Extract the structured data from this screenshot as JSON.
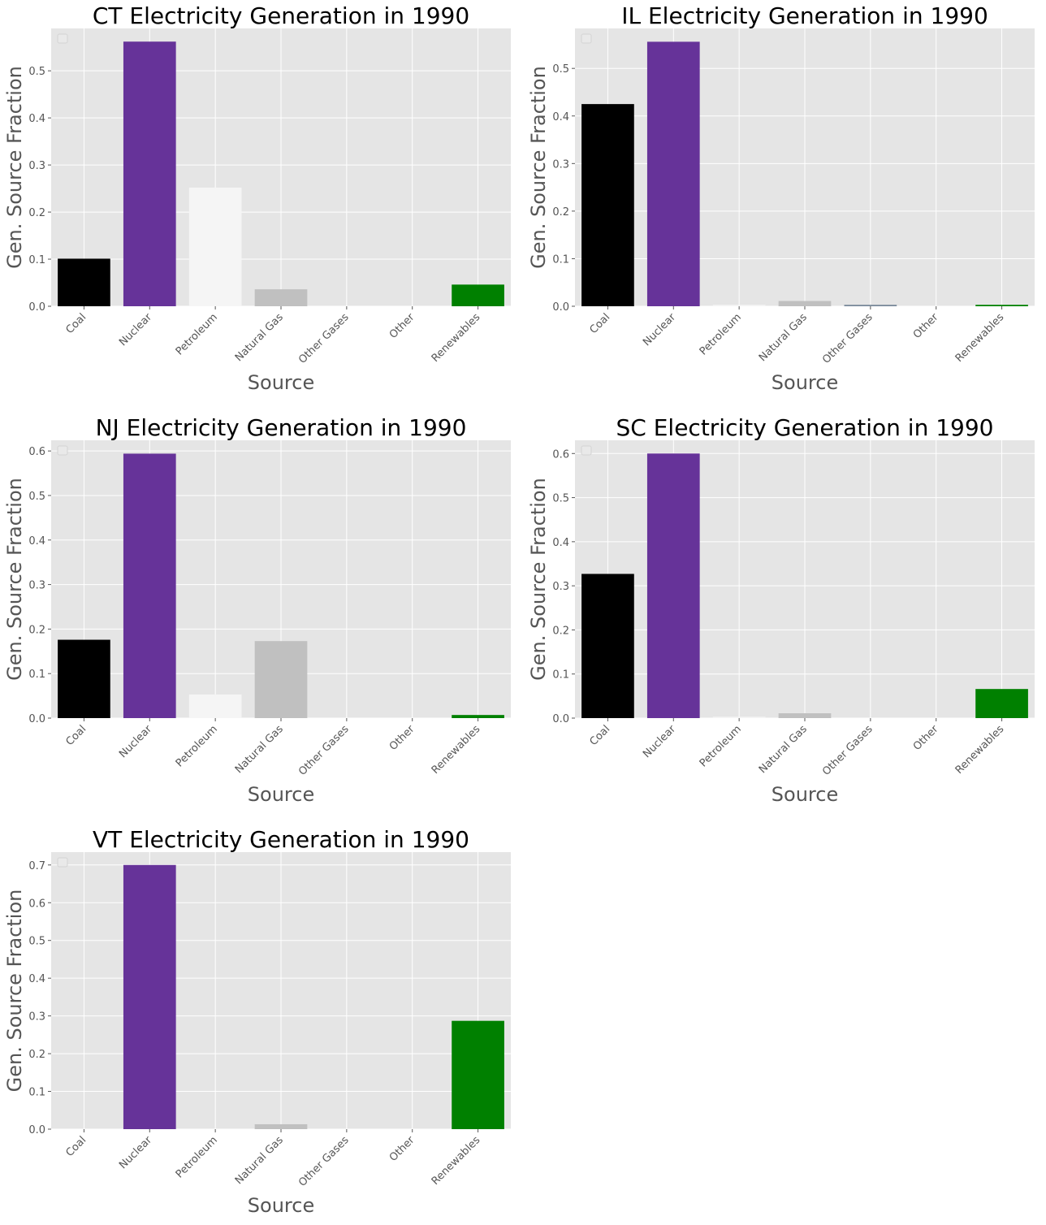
{
  "colors": {
    "plot_background": "#e5e5e5",
    "grid": "#ffffff",
    "tick_text": "#555555",
    "axis_label": "#555555",
    "title": "#000000",
    "Coal": "#000000",
    "Nuclear": "#663399",
    "Petroleum": "#f5f5f5",
    "Natural Gas": "#c0c0c0",
    "Other Gases": "#778899",
    "Other": "#e5e5e5",
    "Renewables": "#008000"
  },
  "chart_data": [
    {
      "type": "bar",
      "title": "CT Electricity Generation in 1990",
      "xlabel": "Source",
      "ylabel": "Gen. Source Fraction",
      "categories": [
        "Coal",
        "Nuclear",
        "Petroleum",
        "Natural Gas",
        "Other Gases",
        "Other",
        "Renewables"
      ],
      "values": [
        0.101,
        0.562,
        0.252,
        0.036,
        0.0,
        0.0,
        0.046
      ],
      "ylim": [
        0,
        0.59
      ],
      "yticks": [
        0.0,
        0.1,
        0.2,
        0.3,
        0.4,
        0.5
      ],
      "ytick_labels": [
        "0.0",
        "0.1",
        "0.2",
        "0.3",
        "0.4",
        "0.5"
      ],
      "grid": true,
      "legend": "top-left"
    },
    {
      "type": "bar",
      "title": "IL Electricity Generation in 1990",
      "xlabel": "Source",
      "ylabel": "Gen. Source Fraction",
      "categories": [
        "Coal",
        "Nuclear",
        "Petroleum",
        "Natural Gas",
        "Other Gases",
        "Other",
        "Renewables"
      ],
      "values": [
        0.425,
        0.556,
        0.003,
        0.011,
        0.003,
        0.0,
        0.003
      ],
      "ylim": [
        0,
        0.584
      ],
      "yticks": [
        0.0,
        0.1,
        0.2,
        0.3,
        0.4,
        0.5
      ],
      "ytick_labels": [
        "0.0",
        "0.1",
        "0.2",
        "0.3",
        "0.4",
        "0.5"
      ],
      "grid": true,
      "legend": "top-left"
    },
    {
      "type": "bar",
      "title": "NJ Electricity Generation in 1990",
      "xlabel": "Source",
      "ylabel": "Gen. Source Fraction",
      "categories": [
        "Coal",
        "Nuclear",
        "Petroleum",
        "Natural Gas",
        "Other Gases",
        "Other",
        "Renewables"
      ],
      "values": [
        0.176,
        0.594,
        0.053,
        0.173,
        0.0,
        0.0,
        0.007
      ],
      "ylim": [
        0,
        0.624
      ],
      "yticks": [
        0.0,
        0.1,
        0.2,
        0.3,
        0.4,
        0.5,
        0.6
      ],
      "ytick_labels": [
        "0.0",
        "0.1",
        "0.2",
        "0.3",
        "0.4",
        "0.5",
        "0.6"
      ],
      "grid": true,
      "legend": "top-left"
    },
    {
      "type": "bar",
      "title": "SC Electricity Generation in 1990",
      "xlabel": "Source",
      "ylabel": "Gen. Source Fraction",
      "categories": [
        "Coal",
        "Nuclear",
        "Petroleum",
        "Natural Gas",
        "Other Gases",
        "Other",
        "Renewables"
      ],
      "values": [
        0.327,
        0.6,
        0.003,
        0.011,
        0.0,
        0.0,
        0.066
      ],
      "ylim": [
        0,
        0.63
      ],
      "yticks": [
        0.0,
        0.1,
        0.2,
        0.3,
        0.4,
        0.5,
        0.6
      ],
      "ytick_labels": [
        "0.0",
        "0.1",
        "0.2",
        "0.3",
        "0.4",
        "0.5",
        "0.6"
      ],
      "grid": true,
      "legend": "top-left"
    },
    {
      "type": "bar",
      "title": "VT Electricity Generation in 1990",
      "xlabel": "Source",
      "ylabel": "Gen. Source Fraction",
      "categories": [
        "Coal",
        "Nuclear",
        "Petroleum",
        "Natural Gas",
        "Other Gases",
        "Other",
        "Renewables"
      ],
      "values": [
        0.0,
        0.7,
        0.0,
        0.013,
        0.0,
        0.0,
        0.287
      ],
      "ylim": [
        0,
        0.734
      ],
      "yticks": [
        0.0,
        0.1,
        0.2,
        0.3,
        0.4,
        0.5,
        0.6,
        0.7
      ],
      "ytick_labels": [
        "0.0",
        "0.1",
        "0.2",
        "0.3",
        "0.4",
        "0.5",
        "0.6",
        "0.7"
      ],
      "grid": true,
      "legend": "top-left"
    }
  ]
}
